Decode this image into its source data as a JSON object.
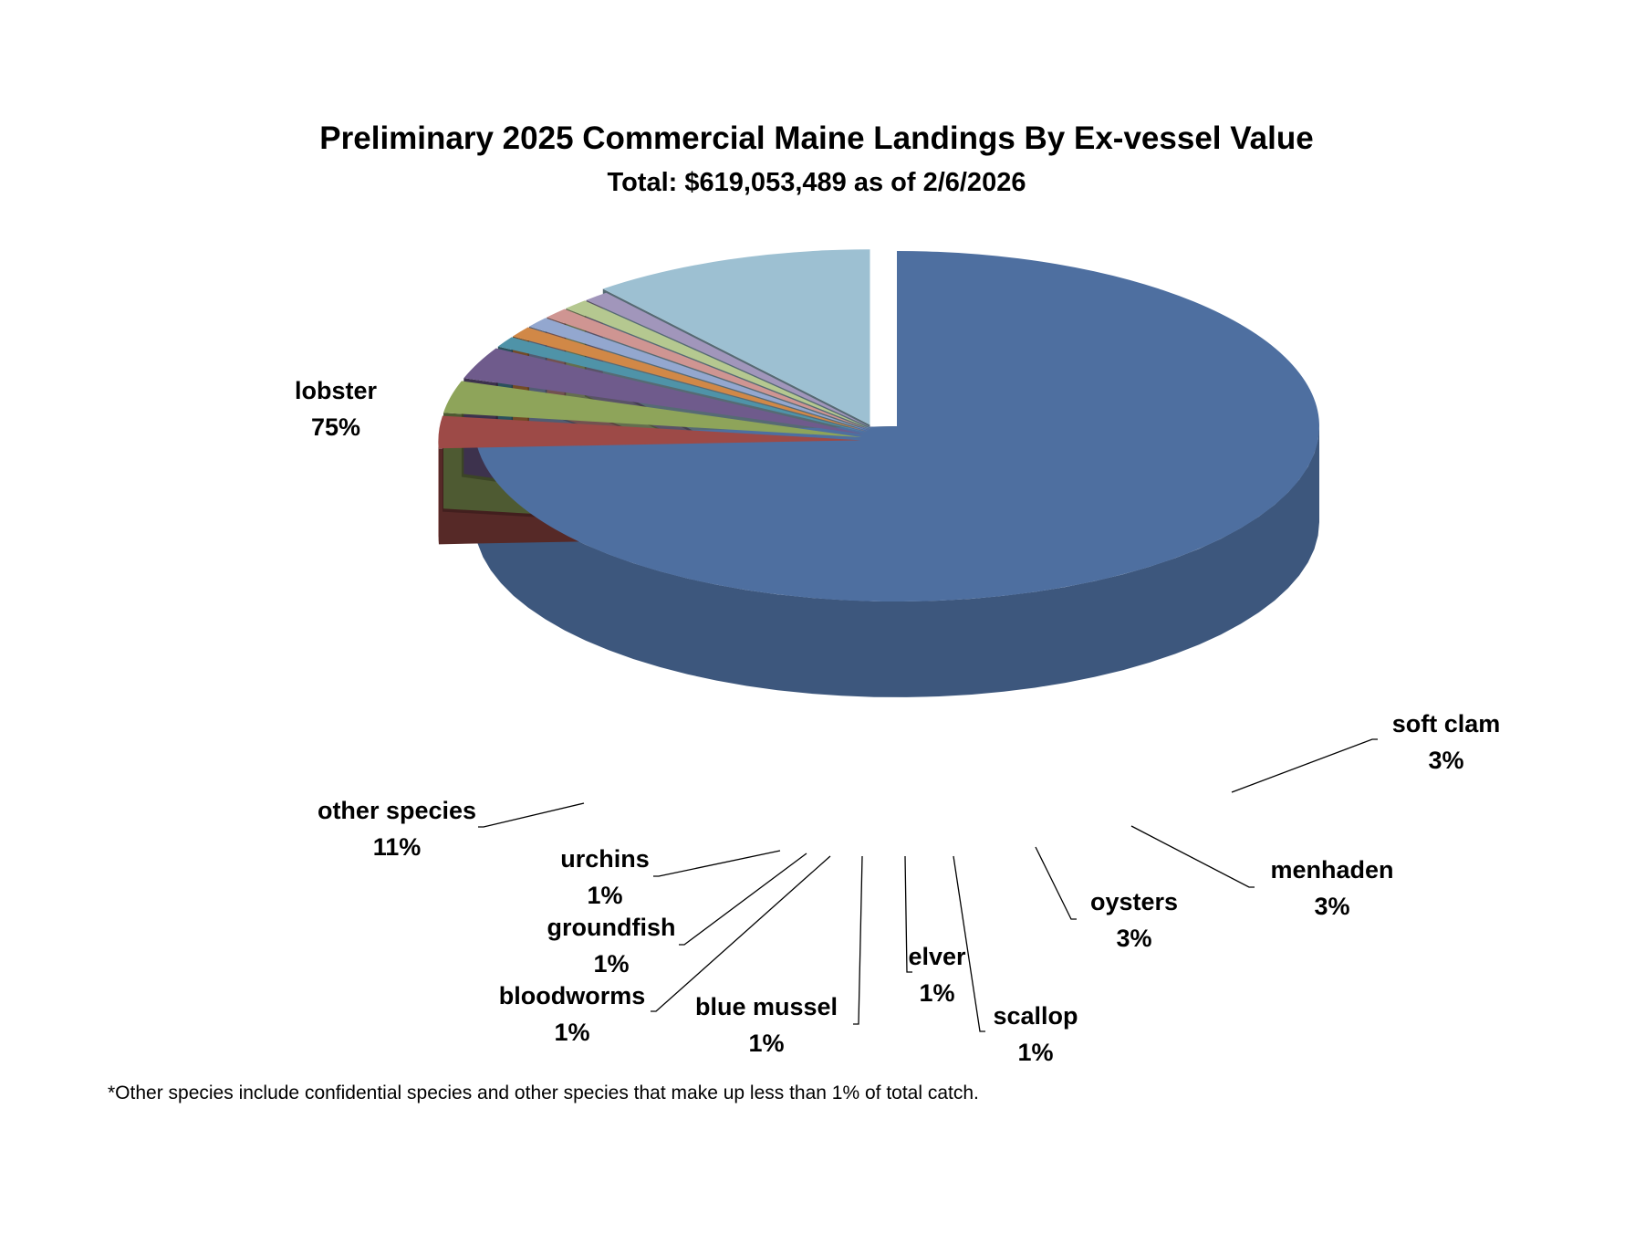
{
  "chart_data": {
    "type": "pie",
    "title": "Preliminary 2025 Commercial Maine Landings By Ex-vessel Value",
    "subtitle": "Total: $619,053,489 as of 2/6/2026",
    "slices": [
      {
        "name": "lobster",
        "label": "75%",
        "value": 75,
        "color": "#4e6fa0"
      },
      {
        "name": "soft clam",
        "label": "3%",
        "value": 3,
        "color": "#9d4a47"
      },
      {
        "name": "menhaden",
        "label": "3%",
        "value": 3,
        "color": "#8ea45a"
      },
      {
        "name": "oysters",
        "label": "3%",
        "value": 3,
        "color": "#6f5b8c"
      },
      {
        "name": "scallop",
        "label": "1%",
        "value": 1,
        "color": "#4f93a8"
      },
      {
        "name": "elver",
        "label": "1%",
        "value": 1,
        "color": "#d18847"
      },
      {
        "name": "blue mussel",
        "label": "1%",
        "value": 1,
        "color": "#93a7cf"
      },
      {
        "name": "bloodworms",
        "label": "1%",
        "value": 1,
        "color": "#cf9592"
      },
      {
        "name": "groundfish",
        "label": "1%",
        "value": 1,
        "color": "#b5c890"
      },
      {
        "name": "urchins",
        "label": "1%",
        "value": 1,
        "color": "#a196bb"
      },
      {
        "name": "other species",
        "label": "11%",
        "value": 11,
        "color": "#9dc0d2"
      }
    ],
    "footnote": "*Other species include confidential species and other species that make up less than 1% of total catch."
  }
}
